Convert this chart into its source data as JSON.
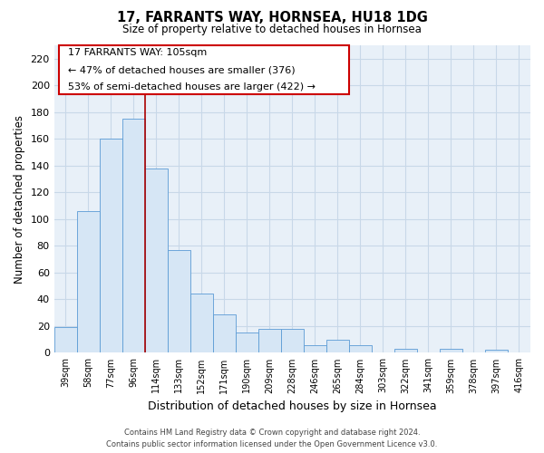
{
  "title": "17, FARRANTS WAY, HORNSEA, HU18 1DG",
  "subtitle": "Size of property relative to detached houses in Hornsea",
  "xlabel": "Distribution of detached houses by size in Hornsea",
  "ylabel": "Number of detached properties",
  "categories": [
    "39sqm",
    "58sqm",
    "77sqm",
    "96sqm",
    "114sqm",
    "133sqm",
    "152sqm",
    "171sqm",
    "190sqm",
    "209sqm",
    "228sqm",
    "246sqm",
    "265sqm",
    "284sqm",
    "303sqm",
    "322sqm",
    "341sqm",
    "359sqm",
    "378sqm",
    "397sqm",
    "416sqm"
  ],
  "values": [
    19,
    106,
    160,
    175,
    138,
    77,
    44,
    29,
    15,
    18,
    18,
    6,
    10,
    6,
    0,
    3,
    0,
    3,
    0,
    2,
    0
  ],
  "bar_fill_color": "#d6e6f5",
  "bar_edge_color": "#5b9bd5",
  "vline_color": "#aa0000",
  "vline_position": 3.5,
  "ylim": [
    0,
    230
  ],
  "yticks": [
    0,
    20,
    40,
    60,
    80,
    100,
    120,
    140,
    160,
    180,
    200,
    220
  ],
  "annotation_text_line1": "17 FARRANTS WAY: 105sqm",
  "annotation_text_line2": "← 47% of detached houses are smaller (376)",
  "annotation_text_line3": "53% of semi-detached houses are larger (422) →",
  "footer_line1": "Contains HM Land Registry data © Crown copyright and database right 2024.",
  "footer_line2": "Contains public sector information licensed under the Open Government Licence v3.0.",
  "background_color": "#ffffff",
  "grid_color": "#c8d8e8"
}
